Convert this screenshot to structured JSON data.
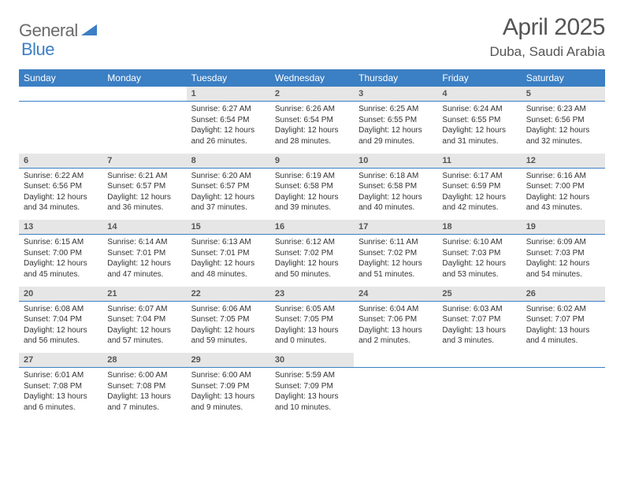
{
  "brand": {
    "part1": "General",
    "part2": "Blue"
  },
  "title": {
    "month": "April 2025",
    "location": "Duba, Saudi Arabia"
  },
  "colors": {
    "header_bg": "#3b7fc4",
    "header_text": "#ffffff",
    "daynum_bg": "#e6e6e6",
    "daynum_text": "#555555",
    "body_text": "#333333",
    "title_text": "#555555",
    "logo_gray": "#6b6b6b",
    "logo_blue": "#3b7fc4",
    "rule": "#3b7fc4",
    "page_bg": "#ffffff"
  },
  "fonts": {
    "title_size_pt": 22,
    "location_size_pt": 13,
    "header_size_pt": 9,
    "daynum_size_pt": 8,
    "body_size_pt": 7.5
  },
  "weekdays": [
    "Sunday",
    "Monday",
    "Tuesday",
    "Wednesday",
    "Thursday",
    "Friday",
    "Saturday"
  ],
  "weeks": [
    [
      null,
      null,
      {
        "n": "1",
        "sunrise": "6:27 AM",
        "sunset": "6:54 PM",
        "daylight": "12 hours and 26 minutes."
      },
      {
        "n": "2",
        "sunrise": "6:26 AM",
        "sunset": "6:54 PM",
        "daylight": "12 hours and 28 minutes."
      },
      {
        "n": "3",
        "sunrise": "6:25 AM",
        "sunset": "6:55 PM",
        "daylight": "12 hours and 29 minutes."
      },
      {
        "n": "4",
        "sunrise": "6:24 AM",
        "sunset": "6:55 PM",
        "daylight": "12 hours and 31 minutes."
      },
      {
        "n": "5",
        "sunrise": "6:23 AM",
        "sunset": "6:56 PM",
        "daylight": "12 hours and 32 minutes."
      }
    ],
    [
      {
        "n": "6",
        "sunrise": "6:22 AM",
        "sunset": "6:56 PM",
        "daylight": "12 hours and 34 minutes."
      },
      {
        "n": "7",
        "sunrise": "6:21 AM",
        "sunset": "6:57 PM",
        "daylight": "12 hours and 36 minutes."
      },
      {
        "n": "8",
        "sunrise": "6:20 AM",
        "sunset": "6:57 PM",
        "daylight": "12 hours and 37 minutes."
      },
      {
        "n": "9",
        "sunrise": "6:19 AM",
        "sunset": "6:58 PM",
        "daylight": "12 hours and 39 minutes."
      },
      {
        "n": "10",
        "sunrise": "6:18 AM",
        "sunset": "6:58 PM",
        "daylight": "12 hours and 40 minutes."
      },
      {
        "n": "11",
        "sunrise": "6:17 AM",
        "sunset": "6:59 PM",
        "daylight": "12 hours and 42 minutes."
      },
      {
        "n": "12",
        "sunrise": "6:16 AM",
        "sunset": "7:00 PM",
        "daylight": "12 hours and 43 minutes."
      }
    ],
    [
      {
        "n": "13",
        "sunrise": "6:15 AM",
        "sunset": "7:00 PM",
        "daylight": "12 hours and 45 minutes."
      },
      {
        "n": "14",
        "sunrise": "6:14 AM",
        "sunset": "7:01 PM",
        "daylight": "12 hours and 47 minutes."
      },
      {
        "n": "15",
        "sunrise": "6:13 AM",
        "sunset": "7:01 PM",
        "daylight": "12 hours and 48 minutes."
      },
      {
        "n": "16",
        "sunrise": "6:12 AM",
        "sunset": "7:02 PM",
        "daylight": "12 hours and 50 minutes."
      },
      {
        "n": "17",
        "sunrise": "6:11 AM",
        "sunset": "7:02 PM",
        "daylight": "12 hours and 51 minutes."
      },
      {
        "n": "18",
        "sunrise": "6:10 AM",
        "sunset": "7:03 PM",
        "daylight": "12 hours and 53 minutes."
      },
      {
        "n": "19",
        "sunrise": "6:09 AM",
        "sunset": "7:03 PM",
        "daylight": "12 hours and 54 minutes."
      }
    ],
    [
      {
        "n": "20",
        "sunrise": "6:08 AM",
        "sunset": "7:04 PM",
        "daylight": "12 hours and 56 minutes."
      },
      {
        "n": "21",
        "sunrise": "6:07 AM",
        "sunset": "7:04 PM",
        "daylight": "12 hours and 57 minutes."
      },
      {
        "n": "22",
        "sunrise": "6:06 AM",
        "sunset": "7:05 PM",
        "daylight": "12 hours and 59 minutes."
      },
      {
        "n": "23",
        "sunrise": "6:05 AM",
        "sunset": "7:05 PM",
        "daylight": "13 hours and 0 minutes."
      },
      {
        "n": "24",
        "sunrise": "6:04 AM",
        "sunset": "7:06 PM",
        "daylight": "13 hours and 2 minutes."
      },
      {
        "n": "25",
        "sunrise": "6:03 AM",
        "sunset": "7:07 PM",
        "daylight": "13 hours and 3 minutes."
      },
      {
        "n": "26",
        "sunrise": "6:02 AM",
        "sunset": "7:07 PM",
        "daylight": "13 hours and 4 minutes."
      }
    ],
    [
      {
        "n": "27",
        "sunrise": "6:01 AM",
        "sunset": "7:08 PM",
        "daylight": "13 hours and 6 minutes."
      },
      {
        "n": "28",
        "sunrise": "6:00 AM",
        "sunset": "7:08 PM",
        "daylight": "13 hours and 7 minutes."
      },
      {
        "n": "29",
        "sunrise": "6:00 AM",
        "sunset": "7:09 PM",
        "daylight": "13 hours and 9 minutes."
      },
      {
        "n": "30",
        "sunrise": "5:59 AM",
        "sunset": "7:09 PM",
        "daylight": "13 hours and 10 minutes."
      },
      null,
      null,
      null
    ]
  ],
  "labels": {
    "sunrise_prefix": "Sunrise: ",
    "sunset_prefix": "Sunset: ",
    "daylight_prefix": "Daylight: "
  }
}
